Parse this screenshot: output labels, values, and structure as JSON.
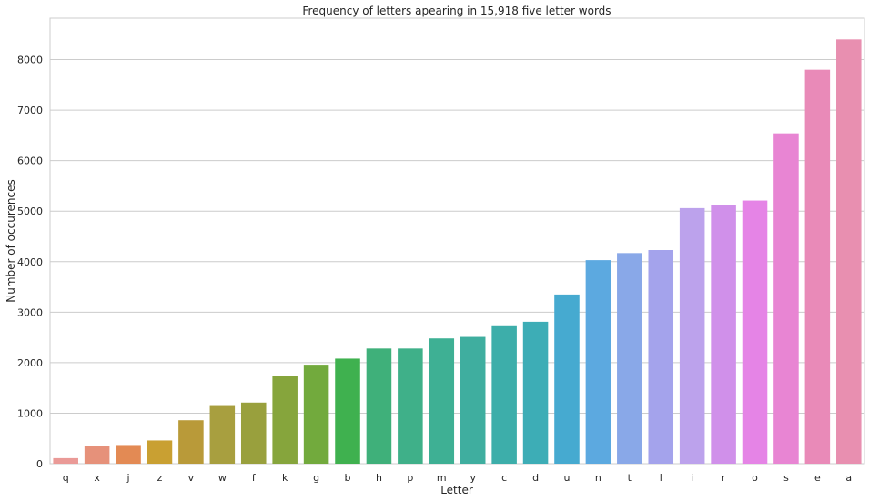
{
  "chart_data": {
    "type": "bar",
    "title": "Frequency of letters apearing in 15,918 five letter words",
    "xlabel": "Letter",
    "ylabel": "Number of occurences",
    "categories": [
      "q",
      "x",
      "j",
      "z",
      "v",
      "w",
      "f",
      "k",
      "g",
      "b",
      "h",
      "p",
      "m",
      "y",
      "c",
      "d",
      "u",
      "n",
      "t",
      "l",
      "i",
      "r",
      "o",
      "s",
      "e",
      "a"
    ],
    "values": [
      110,
      350,
      370,
      460,
      860,
      1160,
      1210,
      1730,
      1960,
      2080,
      2280,
      2280,
      2480,
      2510,
      2740,
      2810,
      3350,
      4030,
      4170,
      4230,
      5060,
      5130,
      5210,
      6540,
      7800,
      8400
    ],
    "colors": [
      "#ea9a97",
      "#e6917a",
      "#e38a54",
      "#c9a032",
      "#b99a39",
      "#a89f3f",
      "#99a03d",
      "#86a53c",
      "#72aa3d",
      "#3fb14f",
      "#3fb07a",
      "#3fb089",
      "#3eb094",
      "#3fae9f",
      "#3daeaa",
      "#3dadb6",
      "#46aad0",
      "#5ca9e0",
      "#89a8e8",
      "#a4a3ec",
      "#bca2ec",
      "#d090ea",
      "#e584e6",
      "#e885d3",
      "#e98ab8",
      "#e88fb0"
    ],
    "yticks": [
      0,
      1000,
      2000,
      3000,
      4000,
      5000,
      6000,
      7000,
      8000
    ],
    "ylim": [
      0,
      8820
    ],
    "grid": true,
    "legend": false
  }
}
